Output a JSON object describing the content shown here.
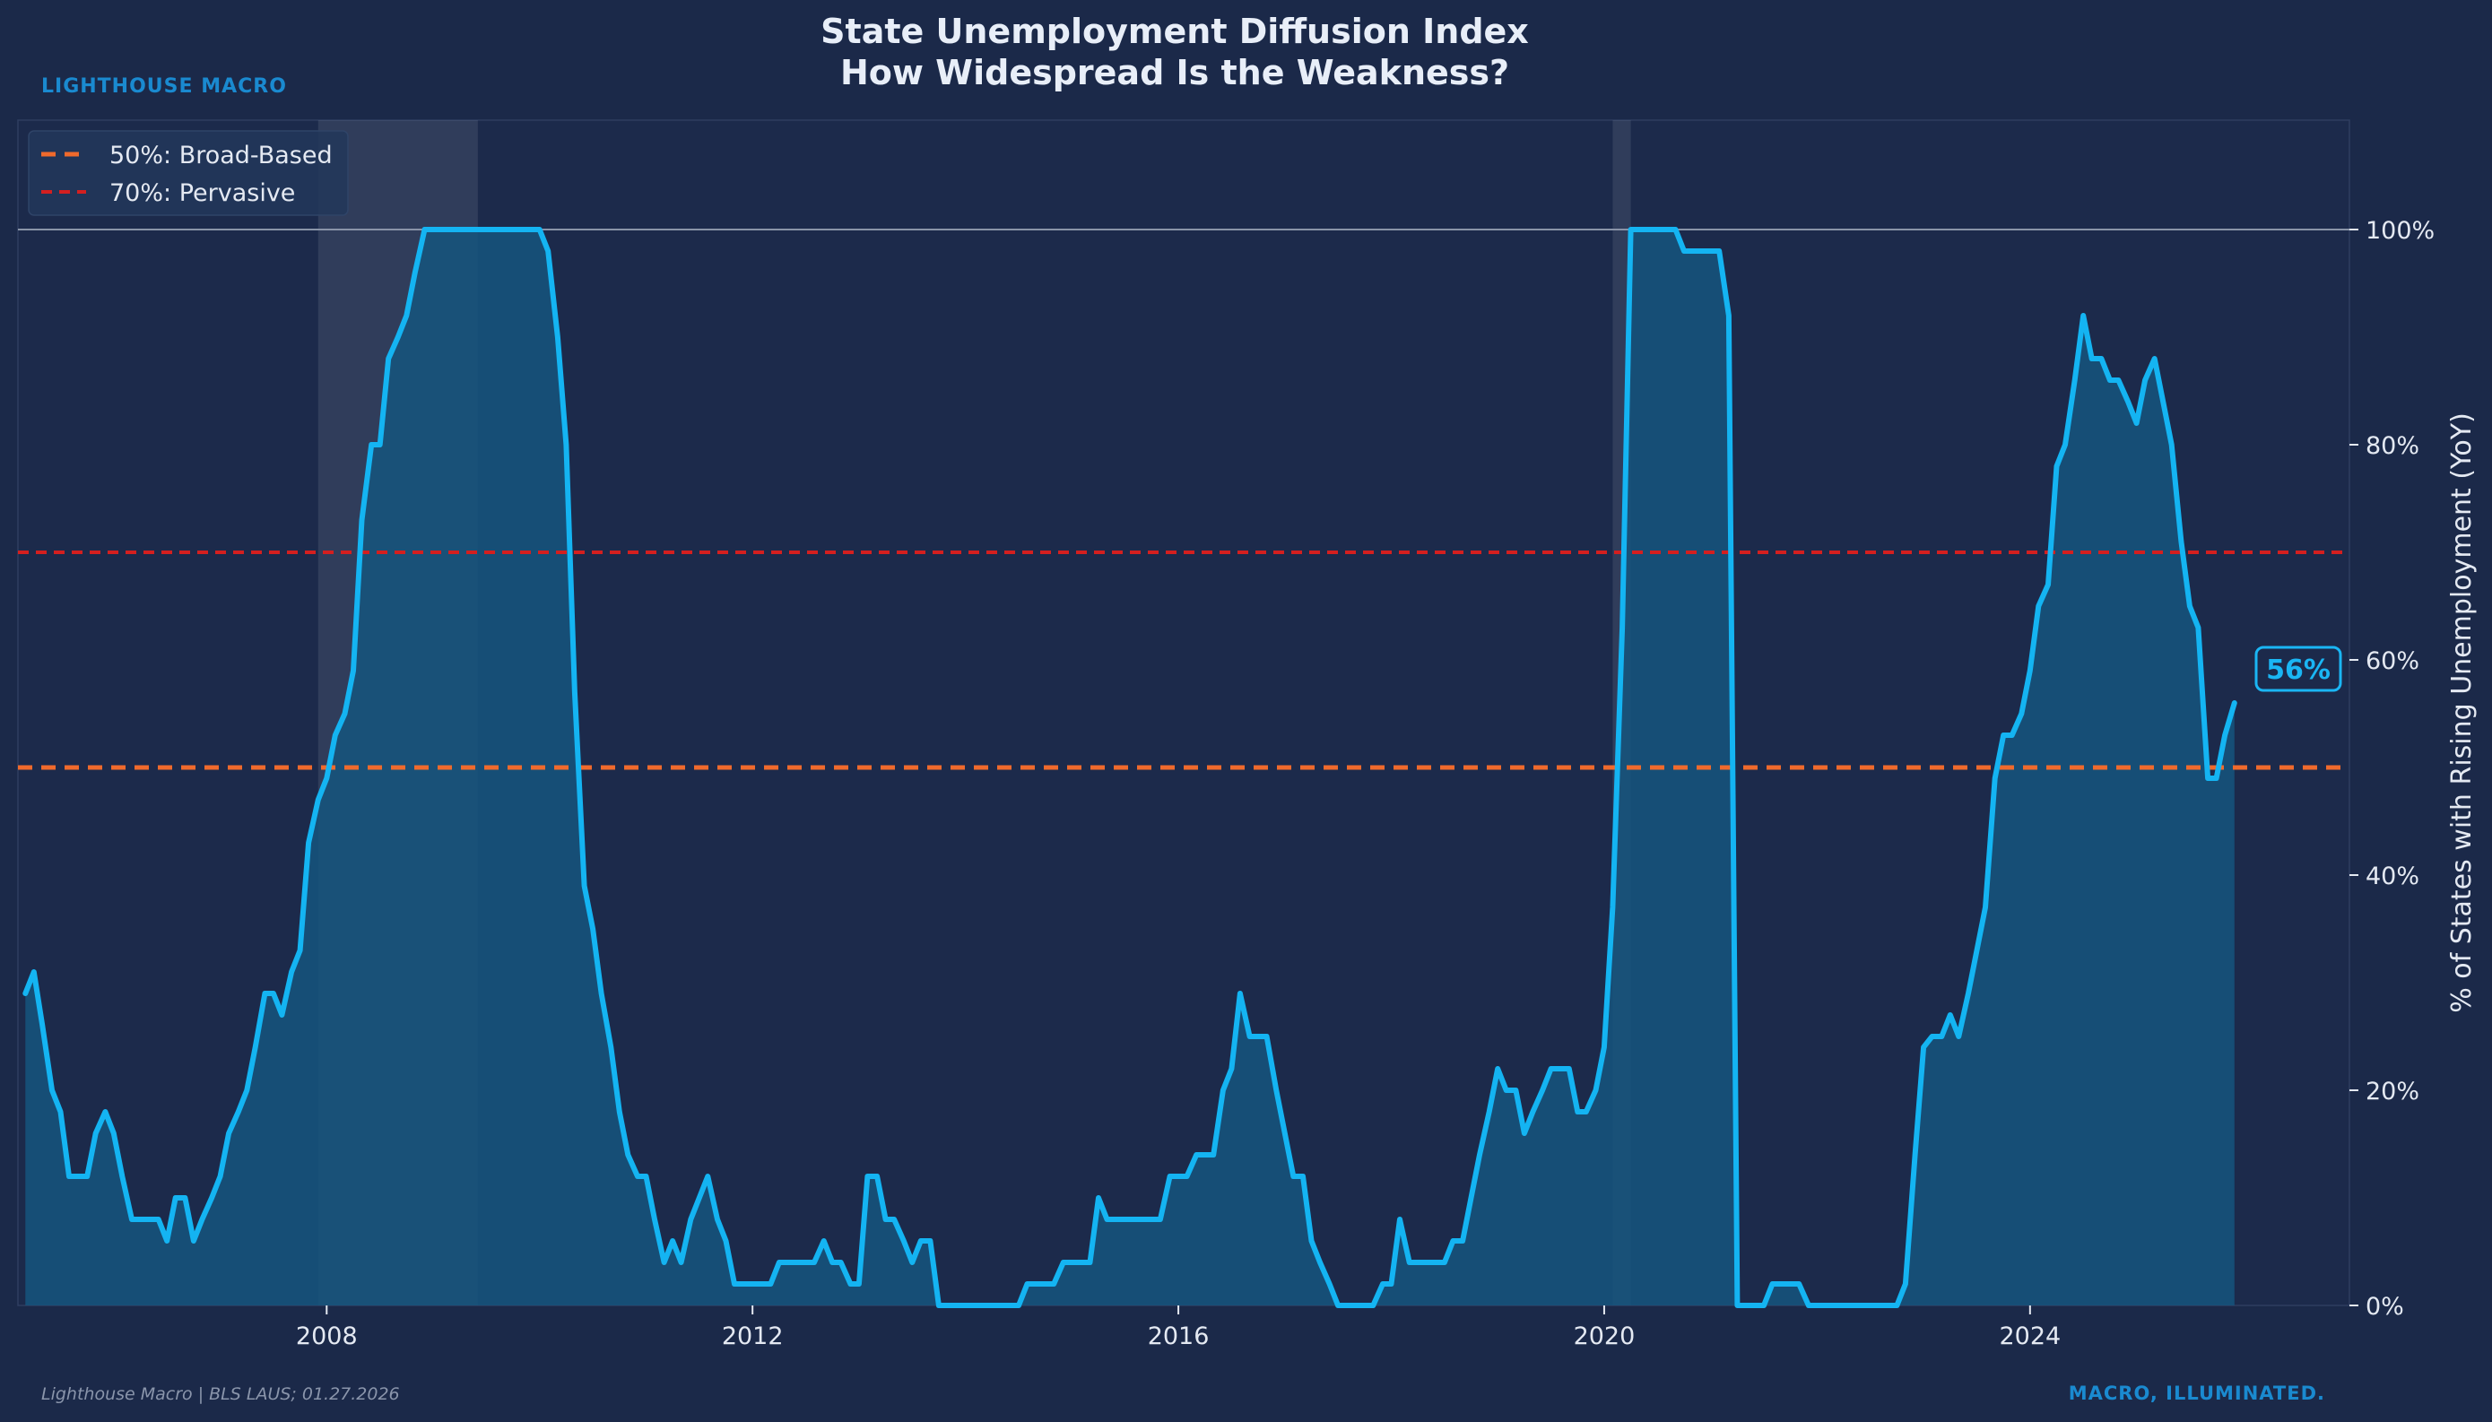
{
  "header": {
    "title_line1": "State Unemployment Diffusion Index",
    "title_line2": "How Widespread Is the Weakness?",
    "brand": "LIGHTHOUSE MACRO"
  },
  "footer": {
    "source": "Lighthouse Macro | BLS LAUS; 01.27.2026",
    "tagline": "MACRO, ILLUMINATED."
  },
  "colors": {
    "background": "#1b2949",
    "series_line": "#14b4f2",
    "series_fill": "#15557e",
    "broad_line": "#f06a2c",
    "pervasive_line": "#d41f1f",
    "recession_band": "#ffffff",
    "brand": "#1a8ad0"
  },
  "chart_data": {
    "type": "area",
    "ylabel": "% of States with Rising Unemployment (YoY)",
    "y_axis_side": "right",
    "ylim": [
      0,
      100
    ],
    "xlim": [
      2005.1,
      2027.0
    ],
    "y_ticks": [
      0,
      20,
      40,
      60,
      80,
      100
    ],
    "y_tick_labels": [
      "0%",
      "20%",
      "40%",
      "60%",
      "80%",
      "100%"
    ],
    "x_ticks": [
      2008,
      2012,
      2016,
      2020,
      2024
    ],
    "x_tick_labels": [
      "2008",
      "2012",
      "2016",
      "2020",
      "2024"
    ],
    "grid": false,
    "legend_position": "top-left",
    "legend": [
      {
        "label": "50%: Broad-Based",
        "style": "dashed",
        "color": "#f06a2c"
      },
      {
        "label": "70%: Pervasive",
        "style": "dashed",
        "color": "#d41f1f"
      }
    ],
    "reference_lines": [
      {
        "y": 50,
        "label": "50%: Broad-Based",
        "color": "#f06a2c"
      },
      {
        "y": 70,
        "label": "70%: Pervasive",
        "color": "#d41f1f"
      },
      {
        "y": 100,
        "label": "",
        "color": "#8a94a8"
      }
    ],
    "recessions": [
      [
        2007.92,
        2009.42
      ],
      [
        2020.08,
        2020.25
      ]
    ],
    "latest_label": "56%",
    "series": [
      {
        "x": [
          2005.17,
          2005.25,
          2005.33,
          2005.42,
          2005.5,
          2005.58,
          2005.67,
          2005.75,
          2005.83,
          2005.92,
          2006.0,
          2006.08,
          2006.17,
          2006.25,
          2006.33,
          2006.42,
          2006.5,
          2006.58,
          2006.67,
          2006.75,
          2006.83,
          2006.92,
          2007.0,
          2007.08,
          2007.17,
          2007.25,
          2007.33,
          2007.42,
          2007.5,
          2007.58,
          2007.67,
          2007.75,
          2007.83,
          2007.92,
          2008.0,
          2008.08,
          2008.17,
          2008.25,
          2008.33,
          2008.42,
          2008.5,
          2008.58,
          2008.67,
          2008.75,
          2008.83,
          2008.92,
          2009.0,
          2009.08,
          2009.17,
          2009.25,
          2009.33,
          2009.42,
          2009.5,
          2009.58,
          2009.67,
          2009.75,
          2009.83,
          2009.92,
          2010.0,
          2010.08,
          2010.17,
          2010.25,
          2010.33,
          2010.42,
          2010.5,
          2010.58,
          2010.67,
          2010.75,
          2010.83,
          2010.92,
          2011.0,
          2011.08,
          2011.17,
          2011.25,
          2011.33,
          2011.42,
          2011.5,
          2011.58,
          2011.67,
          2011.75,
          2011.83,
          2011.92,
          2012.0,
          2012.08,
          2012.17,
          2012.25,
          2012.33,
          2012.42,
          2012.5,
          2012.58,
          2012.67,
          2012.75,
          2012.83,
          2012.92,
          2013.0,
          2013.08,
          2013.17,
          2013.25,
          2013.33,
          2013.42,
          2013.5,
          2013.58,
          2013.67,
          2013.75,
          2013.83,
          2013.92,
          2014.0,
          2014.08,
          2014.17,
          2014.25,
          2014.33,
          2014.42,
          2014.5,
          2014.58,
          2014.67,
          2014.75,
          2014.83,
          2014.92,
          2015.0,
          2015.08,
          2015.17,
          2015.25,
          2015.33,
          2015.42,
          2015.5,
          2015.58,
          2015.67,
          2015.75,
          2015.83,
          2015.92,
          2016.0,
          2016.08,
          2016.17,
          2016.25,
          2016.33,
          2016.42,
          2016.5,
          2016.58,
          2016.67,
          2016.75,
          2016.83,
          2016.92,
          2017.0,
          2017.08,
          2017.17,
          2017.25,
          2017.33,
          2017.42,
          2017.5,
          2017.58,
          2017.67,
          2017.75,
          2017.83,
          2017.92,
          2018.0,
          2018.08,
          2018.17,
          2018.25,
          2018.33,
          2018.42,
          2018.5,
          2018.58,
          2018.67,
          2018.75,
          2018.83,
          2018.92,
          2019.0,
          2019.08,
          2019.17,
          2019.25,
          2019.33,
          2019.42,
          2019.5,
          2019.58,
          2019.67,
          2019.75,
          2019.83,
          2019.92,
          2020.0,
          2020.08,
          2020.17,
          2020.25,
          2020.33,
          2020.42,
          2020.5,
          2020.58,
          2020.67,
          2020.75,
          2020.83,
          2020.92,
          2021.0,
          2021.08,
          2021.17,
          2021.25,
          2021.33,
          2021.42,
          2021.5,
          2021.58,
          2021.67,
          2021.75,
          2021.83,
          2021.92,
          2022.0,
          2022.08,
          2022.17,
          2022.25,
          2022.33,
          2022.42,
          2022.5,
          2022.58,
          2022.67,
          2022.75,
          2022.83,
          2022.92,
          2023.0,
          2023.08,
          2023.17,
          2023.25,
          2023.33,
          2023.42,
          2023.5,
          2023.58,
          2023.67,
          2023.75,
          2023.83,
          2023.92,
          2024.0,
          2024.08,
          2024.17,
          2024.25,
          2024.33,
          2024.42,
          2024.5,
          2024.58,
          2024.67,
          2024.75,
          2024.83,
          2024.92,
          2025.0,
          2025.08,
          2025.17,
          2025.25,
          2025.33,
          2025.42,
          2025.5,
          2025.58,
          2025.67,
          2025.75,
          2025.83,
          2025.92
        ],
        "values": [
          29,
          31,
          26,
          20,
          18,
          12,
          12,
          12,
          16,
          18,
          16,
          12,
          8,
          8,
          8,
          8,
          6,
          10,
          10,
          6,
          8,
          10,
          12,
          16,
          18,
          20,
          24,
          29,
          29,
          27,
          31,
          33,
          43,
          47,
          49,
          53,
          55,
          59,
          73,
          80,
          80,
          88,
          90,
          92,
          96,
          100,
          100,
          100,
          100,
          100,
          100,
          100,
          100,
          100,
          100,
          100,
          100,
          100,
          100,
          98,
          90,
          80,
          57,
          39,
          35,
          29,
          24,
          18,
          14,
          12,
          12,
          8,
          4,
          6,
          4,
          8,
          10,
          12,
          8,
          6,
          2,
          2,
          2,
          2,
          2,
          4,
          4,
          4,
          4,
          4,
          6,
          4,
          4,
          2,
          2,
          12,
          12,
          8,
          8,
          6,
          4,
          6,
          6,
          0,
          0,
          0,
          0,
          0,
          0,
          0,
          0,
          0,
          0,
          2,
          2,
          2,
          2,
          4,
          4,
          4,
          4,
          10,
          8,
          8,
          8,
          8,
          8,
          8,
          8,
          12,
          12,
          12,
          14,
          14,
          14,
          20,
          22,
          29,
          25,
          25,
          25,
          20,
          16,
          12,
          12,
          6,
          4,
          2,
          0,
          0,
          0,
          0,
          0,
          2,
          2,
          8,
          4,
          4,
          4,
          4,
          4,
          6,
          6,
          10,
          14,
          18,
          22,
          20,
          20,
          16,
          18,
          20,
          22,
          22,
          22,
          18,
          18,
          20,
          24,
          37,
          63,
          100,
          100,
          100,
          100,
          100,
          100,
          98,
          98,
          98,
          98,
          98,
          92,
          0,
          0,
          0,
          0,
          2,
          2,
          2,
          2,
          0,
          0,
          0,
          0,
          0,
          0,
          0,
          0,
          0,
          0,
          0,
          2,
          14,
          24,
          25,
          25,
          27,
          25,
          29,
          33,
          37,
          49,
          53,
          53,
          55,
          59,
          65,
          67,
          78,
          80,
          86,
          92,
          88,
          88,
          86,
          86,
          84,
          82,
          86,
          88,
          84,
          80,
          71,
          65,
          63,
          49,
          49,
          53,
          56
        ]
      }
    ]
  }
}
